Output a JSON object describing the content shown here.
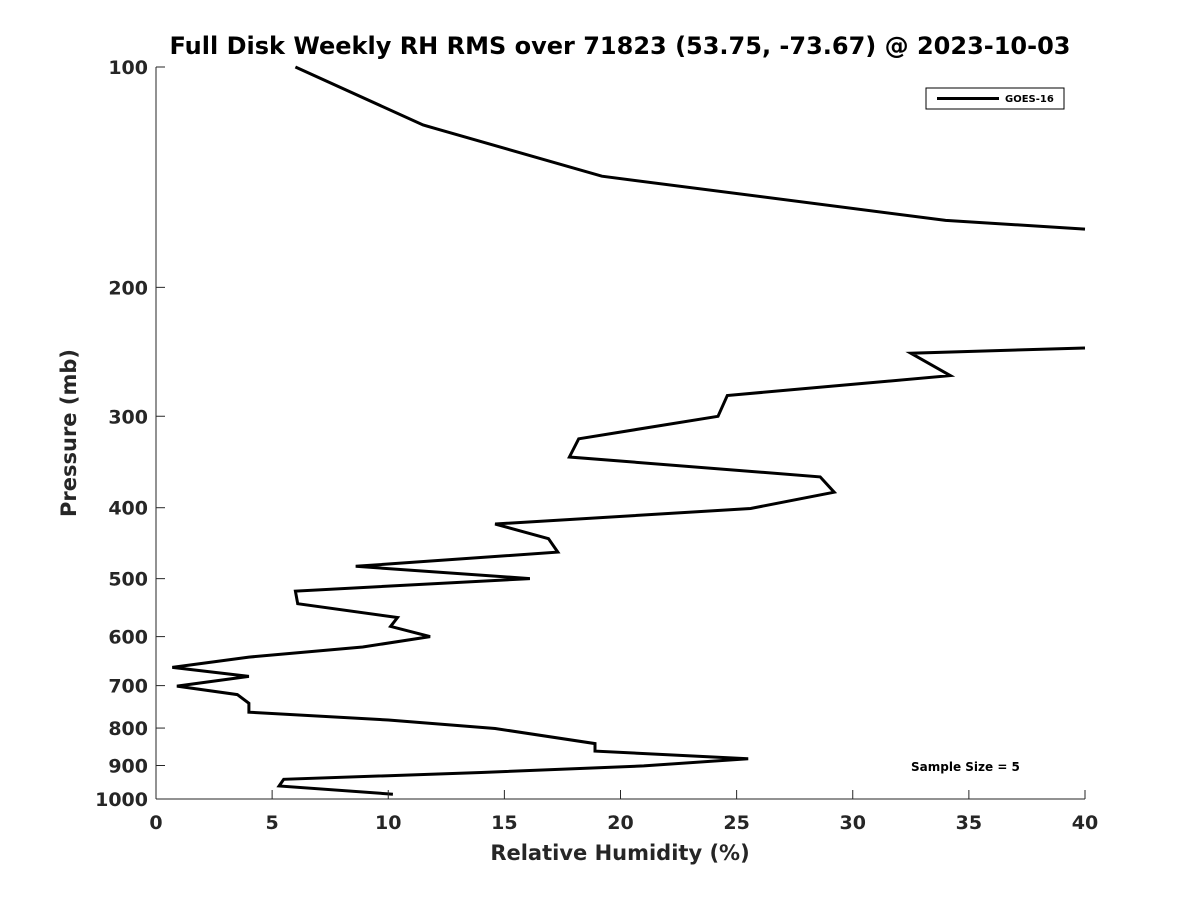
{
  "chart_data": {
    "type": "line",
    "title": "Full Disk Weekly RH RMS over 71823 (53.75, -73.67) @ 2023-10-03",
    "xlabel": "Relative Humidity (%)",
    "ylabel": "Pressure (mb)",
    "xlim": [
      0,
      40
    ],
    "ylim": [
      100,
      1000
    ],
    "yscale": "log",
    "yreversed": true,
    "xticks": [
      "0",
      "5",
      "10",
      "15",
      "20",
      "25",
      "30",
      "35",
      "40"
    ],
    "yticks": [
      "100",
      "200",
      "300",
      "400",
      "500",
      "600",
      "700",
      "800",
      "900",
      "1000"
    ],
    "grid": false,
    "legend_position": "top-right",
    "annotation": "Sample Size = 5",
    "series": [
      {
        "name": "GOES-16",
        "color": "#000000",
        "segments": [
          [
            {
              "x": 6.0,
              "y": 100
            },
            {
              "x": 11.5,
              "y": 120
            },
            {
              "x": 19.2,
              "y": 141
            },
            {
              "x": 34.0,
              "y": 162
            },
            {
              "x": 40.0,
              "y": 166.5
            }
          ],
          [
            {
              "x": 40.0,
              "y": 242
            },
            {
              "x": 32.5,
              "y": 246
            },
            {
              "x": 34.2,
              "y": 264
            },
            {
              "x": 24.6,
              "y": 281
            },
            {
              "x": 24.2,
              "y": 300
            },
            {
              "x": 18.2,
              "y": 322
            },
            {
              "x": 17.8,
              "y": 341
            },
            {
              "x": 28.6,
              "y": 363
            },
            {
              "x": 29.2,
              "y": 381
            },
            {
              "x": 25.6,
              "y": 401
            },
            {
              "x": 14.6,
              "y": 421
            },
            {
              "x": 16.9,
              "y": 441
            },
            {
              "x": 17.3,
              "y": 460
            },
            {
              "x": 8.6,
              "y": 481
            },
            {
              "x": 16.1,
              "y": 500
            },
            {
              "x": 6.0,
              "y": 520
            },
            {
              "x": 6.1,
              "y": 541
            },
            {
              "x": 10.4,
              "y": 565
            },
            {
              "x": 10.1,
              "y": 581
            },
            {
              "x": 11.8,
              "y": 600
            },
            {
              "x": 8.9,
              "y": 620
            },
            {
              "x": 4.0,
              "y": 640
            },
            {
              "x": 0.7,
              "y": 661
            },
            {
              "x": 4.0,
              "y": 680
            },
            {
              "x": 0.9,
              "y": 701
            },
            {
              "x": 3.5,
              "y": 720
            },
            {
              "x": 4.0,
              "y": 740
            },
            {
              "x": 4.0,
              "y": 761
            },
            {
              "x": 10.0,
              "y": 780
            },
            {
              "x": 14.6,
              "y": 801
            },
            {
              "x": 18.9,
              "y": 840
            },
            {
              "x": 18.9,
              "y": 860
            },
            {
              "x": 25.5,
              "y": 881
            },
            {
              "x": 21.0,
              "y": 901
            },
            {
              "x": 14.0,
              "y": 920
            },
            {
              "x": 5.5,
              "y": 940
            },
            {
              "x": 5.3,
              "y": 960
            },
            {
              "x": 10.2,
              "y": 985
            }
          ]
        ]
      }
    ]
  }
}
